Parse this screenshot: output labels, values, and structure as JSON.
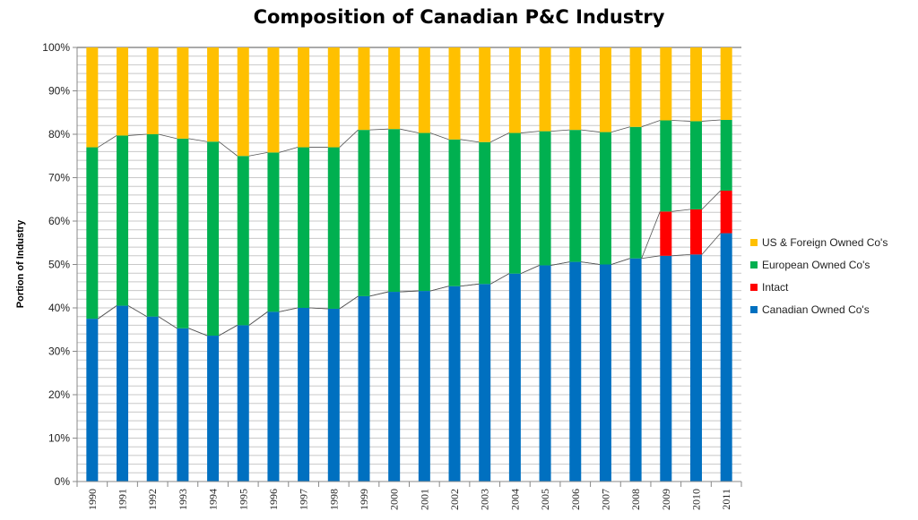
{
  "chart_data": {
    "type": "bar",
    "stacked": true,
    "title": "Composition of Canadian P&C Industry",
    "xlabel": "",
    "ylabel": "Portion of Industry",
    "ylim": [
      0,
      100
    ],
    "y_ticks": [
      "0%",
      "10%",
      "20%",
      "30%",
      "40%",
      "50%",
      "60%",
      "70%",
      "80%",
      "90%",
      "100%"
    ],
    "grid": true,
    "legend_position": "right",
    "categories": [
      "1990",
      "1991",
      "1992",
      "1993",
      "1994",
      "1995",
      "1996",
      "1997",
      "1998",
      "1999",
      "2000",
      "2001",
      "2002",
      "2003",
      "2004",
      "2005",
      "2006",
      "2007",
      "2008",
      "2009",
      "2010",
      "2011"
    ],
    "series": [
      {
        "name": "Canadian Owned Co's",
        "color": "#0070C0",
        "values": [
          37.5,
          40.5,
          38,
          35.3,
          33.6,
          36,
          39.1,
          40,
          39.8,
          42.7,
          43.7,
          43.9,
          45,
          45.5,
          47.9,
          49.8,
          50.6,
          50,
          51.4,
          52,
          52.3,
          57.2
        ]
      },
      {
        "name": "Intact",
        "color": "#FF0000",
        "values": [
          0,
          0,
          0,
          0,
          0,
          0,
          0,
          0,
          0,
          0,
          0,
          0,
          0,
          0,
          0,
          0,
          0,
          0,
          0,
          10.2,
          10.4,
          9.8
        ]
      },
      {
        "name": "European Owned Co's",
        "color": "#00B050",
        "values": [
          39.5,
          39.2,
          42,
          43.7,
          44.7,
          39,
          36.7,
          37,
          37.2,
          38.3,
          37.5,
          36.4,
          33.8,
          32.7,
          32.4,
          30.9,
          30.4,
          30.5,
          30.3,
          21,
          20.3,
          16.3
        ]
      },
      {
        "name": "US & Foreign Owned Co's",
        "color": "#FFC000",
        "values": [
          23,
          20.3,
          20,
          21,
          21.7,
          25,
          24.2,
          23,
          23,
          19,
          18.8,
          19.7,
          21.2,
          21.8,
          19.7,
          19.3,
          19,
          19.5,
          18.3,
          16.8,
          17,
          16.7
        ]
      }
    ]
  }
}
